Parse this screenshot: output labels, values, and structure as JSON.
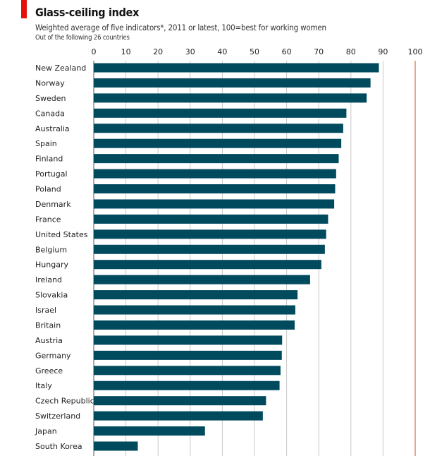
{
  "chart_data": {
    "type": "bar",
    "orientation": "horizontal",
    "title": "Glass-ceiling index",
    "subtitle": "Weighted average of five indicators*, 2011 or latest, 100=best for working women",
    "note": "Out of the following 26 countries",
    "xlim": [
      0,
      100
    ],
    "xticks": [
      0,
      10,
      20,
      30,
      40,
      50,
      60,
      70,
      80,
      90,
      100
    ],
    "grid": true,
    "categories": [
      "New Zealand",
      "Norway",
      "Sweden",
      "Canada",
      "Australia",
      "Spain",
      "Finland",
      "Portugal",
      "Poland",
      "Denmark",
      "France",
      "United States",
      "Belgium",
      "Hungary",
      "Ireland",
      "Slovakia",
      "Israel",
      "Britain",
      "Austria",
      "Germany",
      "Greece",
      "Italy",
      "Czech Republic",
      "Switzerland",
      "Japan",
      "South Korea"
    ],
    "values": [
      88.7,
      86.1,
      84.9,
      78.6,
      77.6,
      77.0,
      76.2,
      75.4,
      75.1,
      74.8,
      72.9,
      72.3,
      71.9,
      70.8,
      67.3,
      63.4,
      62.7,
      62.5,
      58.6,
      58.5,
      58.1,
      57.8,
      53.6,
      52.6,
      34.6,
      13.7
    ],
    "colors": {
      "bar": "#004a5e",
      "accent": "#e3120b",
      "reference_line": "#e8836e",
      "grid": "#c8c8c8"
    }
  }
}
